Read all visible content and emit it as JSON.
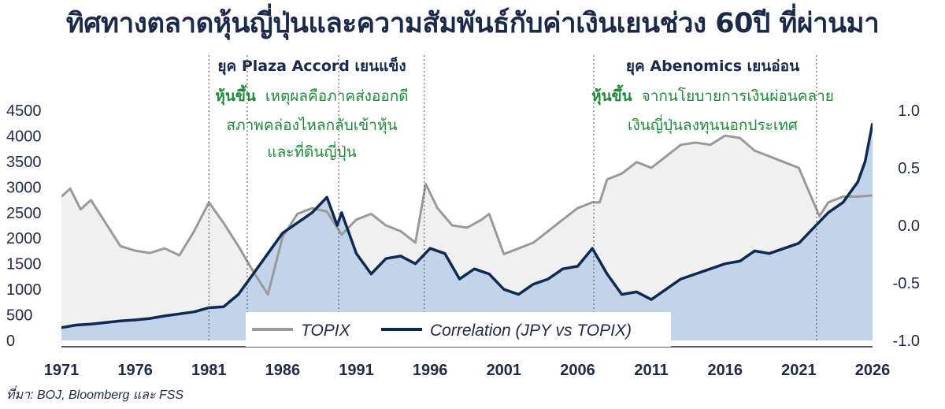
{
  "title": "ทิศทางตลาดหุ้นญี่ปุ่นและความสัมพันธ์กับค่าเงินเยนช่วง 60ปี ที่ผ่านมา",
  "source": "ที่มา: BOJ, Bloomberg และ FSS",
  "colors": {
    "topix_line": "#9a9a9a",
    "topix_fill": "#f0f0f0",
    "corr_line": "#0e2a52",
    "corr_fill": "#c2d4ea",
    "green": "#1f8a3a",
    "dark": "#1b2a48"
  },
  "annotations": {
    "plaza": {
      "title": "ยุค Plaza Accord เยนแข็ง",
      "highlight": "หุ้นขึ้น",
      "rest": "เหตุผลคือภาคส่งออกดี",
      "line2": "สภาพคล่องไหลกลับเข้าหุ้น",
      "line3": "และที่ดินญี่ปุ่น"
    },
    "abe": {
      "title": "ยุค Abenomics เยนอ่อน",
      "highlight": "หุ้นขึ้น",
      "rest": "จากนโยบายการเงินผ่อนคลาย",
      "line2": "เงินญี่ปุ่นลงทุนนอกประเทศ"
    }
  },
  "legend": {
    "topix": "TOPIX",
    "corr": "Correlation (JPY vs TOPIX)"
  },
  "chart_data": {
    "type": "line",
    "xlim": [
      1971,
      2026
    ],
    "x_ticks": [
      "1971",
      "1976",
      "1981",
      "1986",
      "1991",
      "1996",
      "2001",
      "2006",
      "2011",
      "2016",
      "2021",
      "2026"
    ],
    "y_left": {
      "lim": [
        0,
        4500
      ],
      "ticks": [
        "0",
        "500",
        "1000",
        "1500",
        "2000",
        "2500",
        "3000",
        "3500",
        "4000",
        "4500"
      ]
    },
    "y_right": {
      "lim": [
        -1.0,
        1.0
      ],
      "ticks": [
        "-1.0",
        "-0.5",
        "0.0",
        "0.5",
        "1.0"
      ]
    },
    "event_lines": [
      1981,
      1983.6,
      1989.8,
      1995.6,
      2007.1,
      2022.2
    ],
    "series": [
      {
        "name": "TOPIX",
        "axis": "right",
        "x": [
          1971,
          1971.6,
          1972.3,
          1973,
          1974,
          1975,
          1976,
          1977,
          1978,
          1979,
          1980,
          1981,
          1982,
          1983,
          1984,
          1985,
          1986,
          1987,
          1988,
          1989,
          1990,
          1991,
          1992,
          1993,
          1994,
          1995,
          1995.7,
          1996.5,
          1997.5,
          1998.5,
          1999.5,
          2000,
          2001,
          2002,
          2003,
          2004,
          2005,
          2006,
          2007,
          2007.5,
          2008,
          2009,
          2010,
          2011,
          2012,
          2013,
          2014,
          2015,
          2016,
          2017,
          2018,
          2019,
          2020,
          2021,
          2022,
          2022.4,
          2023,
          2024,
          2025,
          2026
        ],
        "y": [
          0.25,
          0.32,
          0.14,
          0.22,
          0.02,
          -0.18,
          -0.22,
          -0.24,
          -0.2,
          -0.26,
          -0.05,
          0.2,
          0.02,
          -0.18,
          -0.4,
          -0.6,
          -0.1,
          0.1,
          0.15,
          0.12,
          -0.08,
          0.05,
          0.1,
          0.0,
          -0.05,
          -0.15,
          0.36,
          0.15,
          0.0,
          -0.02,
          0.05,
          0.1,
          -0.25,
          -0.2,
          -0.15,
          -0.05,
          0.05,
          0.15,
          0.2,
          0.2,
          0.4,
          0.45,
          0.55,
          0.5,
          0.6,
          0.7,
          0.72,
          0.7,
          0.78,
          0.76,
          0.65,
          0.6,
          0.55,
          0.5,
          0.2,
          0.08,
          0.2,
          0.25,
          0.25,
          0.26
        ]
      },
      {
        "name": "Correlation (JPY vs TOPIX)",
        "axis": "left",
        "x": [
          1971,
          1972,
          1973,
          1974,
          1975,
          1976,
          1977,
          1978,
          1979,
          1980,
          1981,
          1982,
          1983,
          1984,
          1985,
          1986,
          1987,
          1988,
          1989,
          1989.7,
          1990,
          1991,
          1992,
          1993,
          1994,
          1995,
          1996,
          1997,
          1998,
          1999,
          2000,
          2001,
          2002,
          2003,
          2004,
          2005,
          2006,
          2007,
          2008,
          2009,
          2010,
          2011,
          2012,
          2013,
          2014,
          2015,
          2016,
          2017,
          2018,
          2019,
          2020,
          2021,
          2022,
          2023,
          2024,
          2025,
          2025.5,
          2026
        ],
        "y": [
          250,
          300,
          320,
          350,
          380,
          400,
          430,
          480,
          520,
          560,
          640,
          660,
          900,
          1300,
          1700,
          2100,
          2300,
          2500,
          2800,
          2250,
          2500,
          1700,
          1300,
          1600,
          1650,
          1500,
          1800,
          1700,
          1200,
          1400,
          1300,
          1000,
          900,
          1100,
          1200,
          1400,
          1450,
          1800,
          1300,
          900,
          950,
          800,
          1000,
          1200,
          1300,
          1400,
          1500,
          1550,
          1750,
          1700,
          1800,
          1900,
          2200,
          2500,
          2700,
          3100,
          3500,
          4250
        ]
      }
    ]
  }
}
